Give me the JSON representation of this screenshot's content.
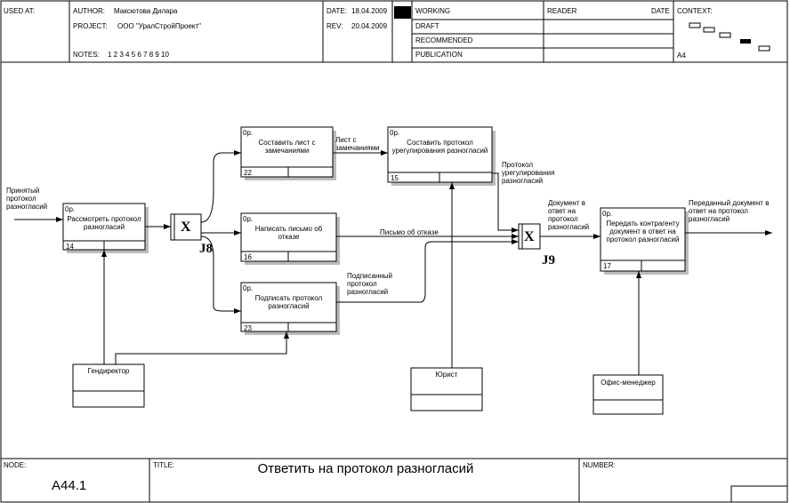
{
  "header": {
    "used_at": "USED AT:",
    "author_label": "AUTHOR:",
    "author": "Максютова Дилара",
    "date_label": "DATE:",
    "date": "18.04.2009",
    "project_label": "PROJECT:",
    "project": "ООО \"УралСтройПроект\"",
    "rev_label": "REV:",
    "rev": "20.04.2009",
    "notes_label": "NOTES:",
    "notes": "1 2 3 4 5 6 7 8 9 10",
    "status": [
      "WORKING",
      "DRAFT",
      "RECOMMENDED",
      "PUBLICATION"
    ],
    "reader": "READER",
    "reader_date": "DATE",
    "context": "CONTEXT:",
    "context_node": "A4"
  },
  "activities": [
    {
      "ref": "0р.",
      "label": "Рассмотреть протокол разногласий",
      "number": 14
    },
    {
      "ref": "0р.",
      "label": "Составить лист с замечаниями",
      "number": 22
    },
    {
      "ref": "0р.",
      "label": "Написать письмо об отказе",
      "number": 16
    },
    {
      "ref": "0р.",
      "label": "Подписать протокол разногласий",
      "number": 23
    },
    {
      "ref": "0р.",
      "label": "Составить протокол урегулирования разногласий",
      "number": 15
    },
    {
      "ref": "0р.",
      "label": "Передать контрагенту документ в ответ на протокол разногласий",
      "number": 17
    }
  ],
  "junctions": [
    {
      "symbol": "X",
      "label": "J8"
    },
    {
      "symbol": "X",
      "label": "J9"
    }
  ],
  "resources": [
    "Гендиректор",
    "Юрист",
    "Офис-менеджер"
  ],
  "arrows": [
    "Принятый протокол разногласий",
    "Лист с замечаниями",
    "Письмо об отказе",
    "Подписанный протокол разногласий",
    "Протокол урегулирования разногласий",
    "Документ в ответ на протокол разногласий",
    "Переданный документ в ответ на протокол разногласий"
  ],
  "footer": {
    "node_label": "NODE:",
    "node": "A44.1",
    "title_label": "TITLE:",
    "title": "Ответить на протокол разногласий",
    "number_label": "NUMBER:"
  }
}
